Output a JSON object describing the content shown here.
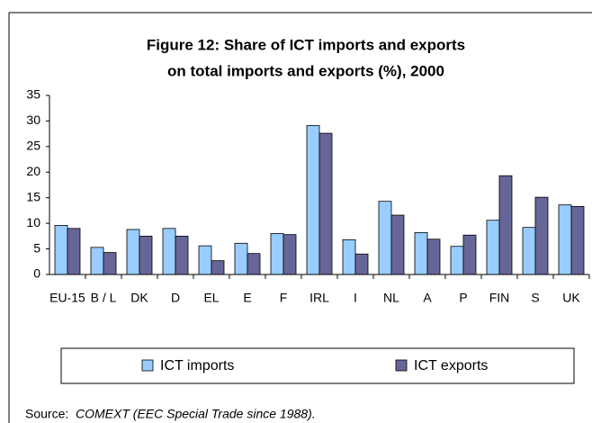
{
  "chart_data": {
    "type": "bar",
    "title": "Figure 12: Share of ICT imports and exports",
    "subtitle": "on total imports and exports (%), 2000",
    "categories": [
      "EU-15",
      "B / L",
      "DK",
      "D",
      "EL",
      "E",
      "F",
      "IRL",
      "I",
      "NL",
      "A",
      "P",
      "FIN",
      "S",
      "UK"
    ],
    "series": [
      {
        "name": "ICT imports",
        "color": "#99ccff",
        "values": [
          9.6,
          5.3,
          8.8,
          9.0,
          5.6,
          6.1,
          8.0,
          29.1,
          6.8,
          14.3,
          8.2,
          5.5,
          10.6,
          9.2,
          13.6
        ]
      },
      {
        "name": "ICT exports",
        "color": "#666699",
        "values": [
          9.0,
          4.3,
          7.5,
          7.5,
          2.7,
          4.1,
          7.8,
          27.6,
          4.0,
          11.6,
          6.9,
          7.7,
          19.3,
          15.1,
          13.3
        ]
      }
    ],
    "ylim": [
      0,
      35
    ],
    "yticks": [
      0,
      5,
      10,
      15,
      20,
      25,
      30,
      35
    ],
    "legend": "bottom",
    "source_label": "Source:",
    "source": "COMEXT (EEC Special Trade since 1988)."
  }
}
